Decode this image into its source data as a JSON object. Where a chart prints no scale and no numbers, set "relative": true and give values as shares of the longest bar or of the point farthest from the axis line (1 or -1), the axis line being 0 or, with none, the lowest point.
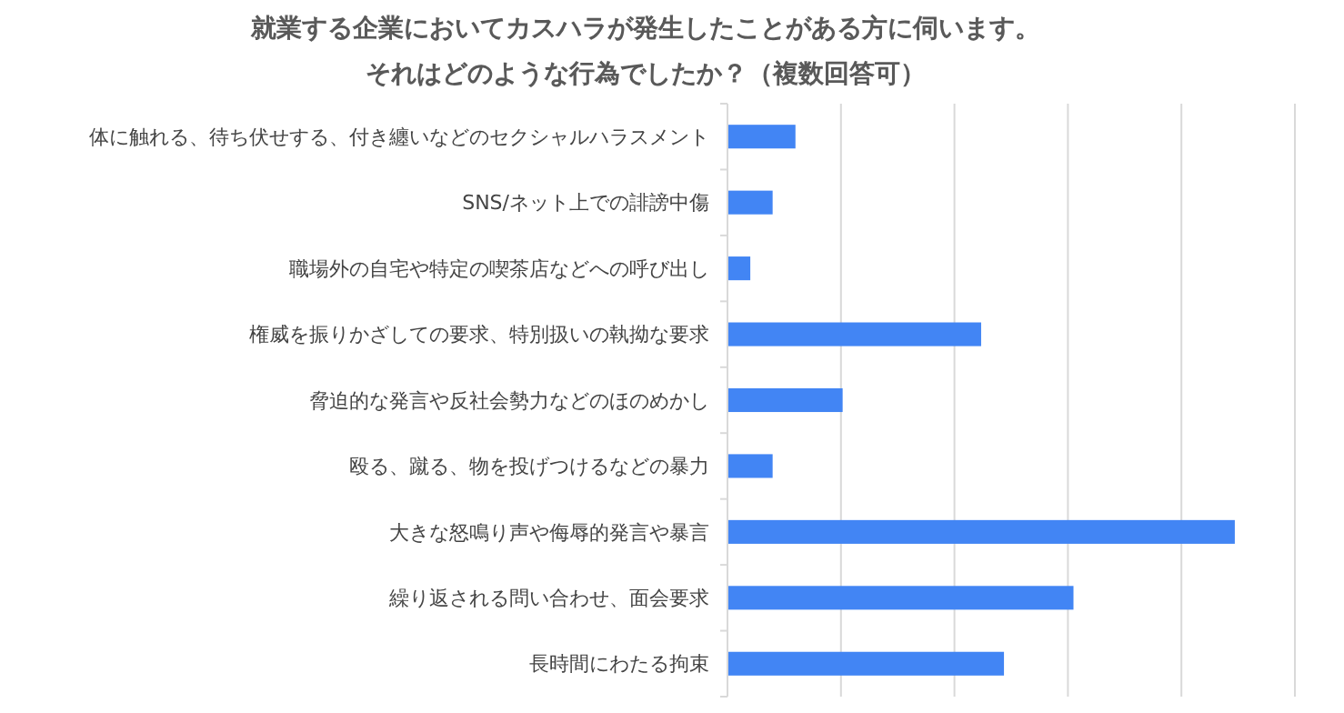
{
  "chart_data": {
    "type": "bar",
    "orientation": "horizontal",
    "relative": true,
    "title": "就業する企業においてカスハラが発生したことがある方に伺います。",
    "subtitle": "それはどのような行為でしたか？（複数回答可）",
    "categories": [
      "体に触れる、待ち伏せする、付き纏いなどのセクシャルハラスメント",
      "SNS/ネット上での誹謗中傷",
      "職場外の自宅や特定の喫茶店などへの呼び出し",
      "権威を振りかざしての要求、特別扱いの執拗な要求",
      "脅迫的な発言や反社会勢力などのほのめかし",
      "殴る、蹴る、物を投げつけるなどの暴力",
      "大きな怒鳴り声や侮辱的発言や暴言",
      "繰り返される問い合わせ、面会要求",
      "長時間にわたる拘束"
    ],
    "values": [
      0.134,
      0.089,
      0.045,
      0.5,
      0.227,
      0.089,
      1,
      0.682,
      0.545
    ],
    "color": "#4285f4",
    "grid": "x"
  }
}
